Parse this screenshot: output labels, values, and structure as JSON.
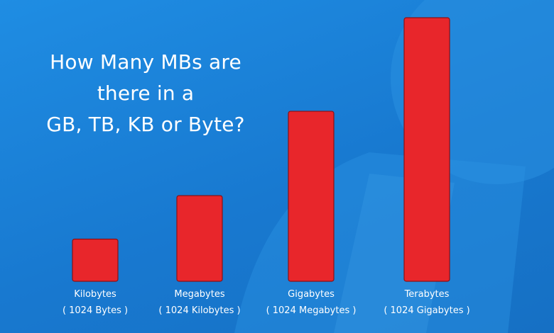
{
  "chart_data": {
    "type": "bar",
    "title_lines": [
      "How Many MBs are",
      "there in a",
      "GB, TB, KB or Byte?"
    ],
    "categories": [
      "Kilobytes",
      "Megabytes",
      "Gigabytes",
      "Terabytes"
    ],
    "sublabels": [
      "( 1024 Bytes )",
      "( 1024 Kilobytes )",
      "( 1024 Megabytes )",
      "( 1024 Gigabytes )"
    ],
    "values": [
      1,
      2,
      3,
      4
    ],
    "xlabel": "",
    "ylabel": "",
    "grid": false,
    "legend": "none",
    "colors": {
      "bar": "#e8262b",
      "bar_edge": "#8a1015",
      "text": "#ffffff",
      "background": "#1a82d8"
    }
  }
}
